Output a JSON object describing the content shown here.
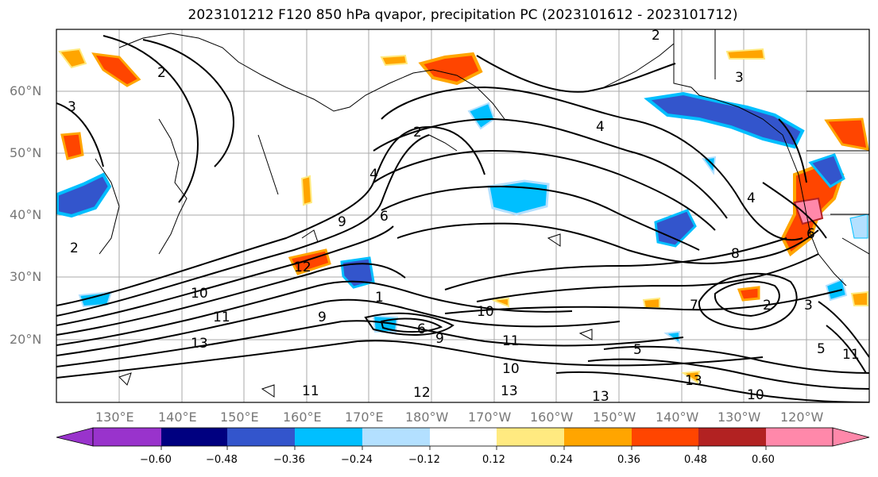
{
  "title": "2023101212 F120 850 hPa qvapor, precipitation PC (2023101612 - 2023101712)",
  "map": {
    "lat_labels": [
      "60°N",
      "50°N",
      "40°N",
      "30°N",
      "20°N"
    ],
    "lon_labels": [
      "130°E",
      "140°E",
      "150°E",
      "160°E",
      "170°E",
      "180°W",
      "170°W",
      "160°W",
      "150°W",
      "140°W",
      "130°W",
      "120°W"
    ],
    "contour_labels": [
      "2",
      "3",
      "4",
      "6",
      "8",
      "9",
      "10",
      "11",
      "12",
      "13",
      "5",
      "7",
      "1"
    ]
  },
  "colorbar": {
    "colors": [
      "#9933cc",
      "#000080",
      "#3355cc",
      "#00bfff",
      "#b3e0ff",
      "#ffffff",
      "#ffea80",
      "#ffa500",
      "#ff4500",
      "#b22222",
      "#ff88aa"
    ],
    "tick_labels": [
      "−0.60",
      "−0.48",
      "−0.36",
      "−0.24",
      "−0.12",
      "0.12",
      "0.24",
      "0.36",
      "0.48",
      "0.60"
    ]
  }
}
